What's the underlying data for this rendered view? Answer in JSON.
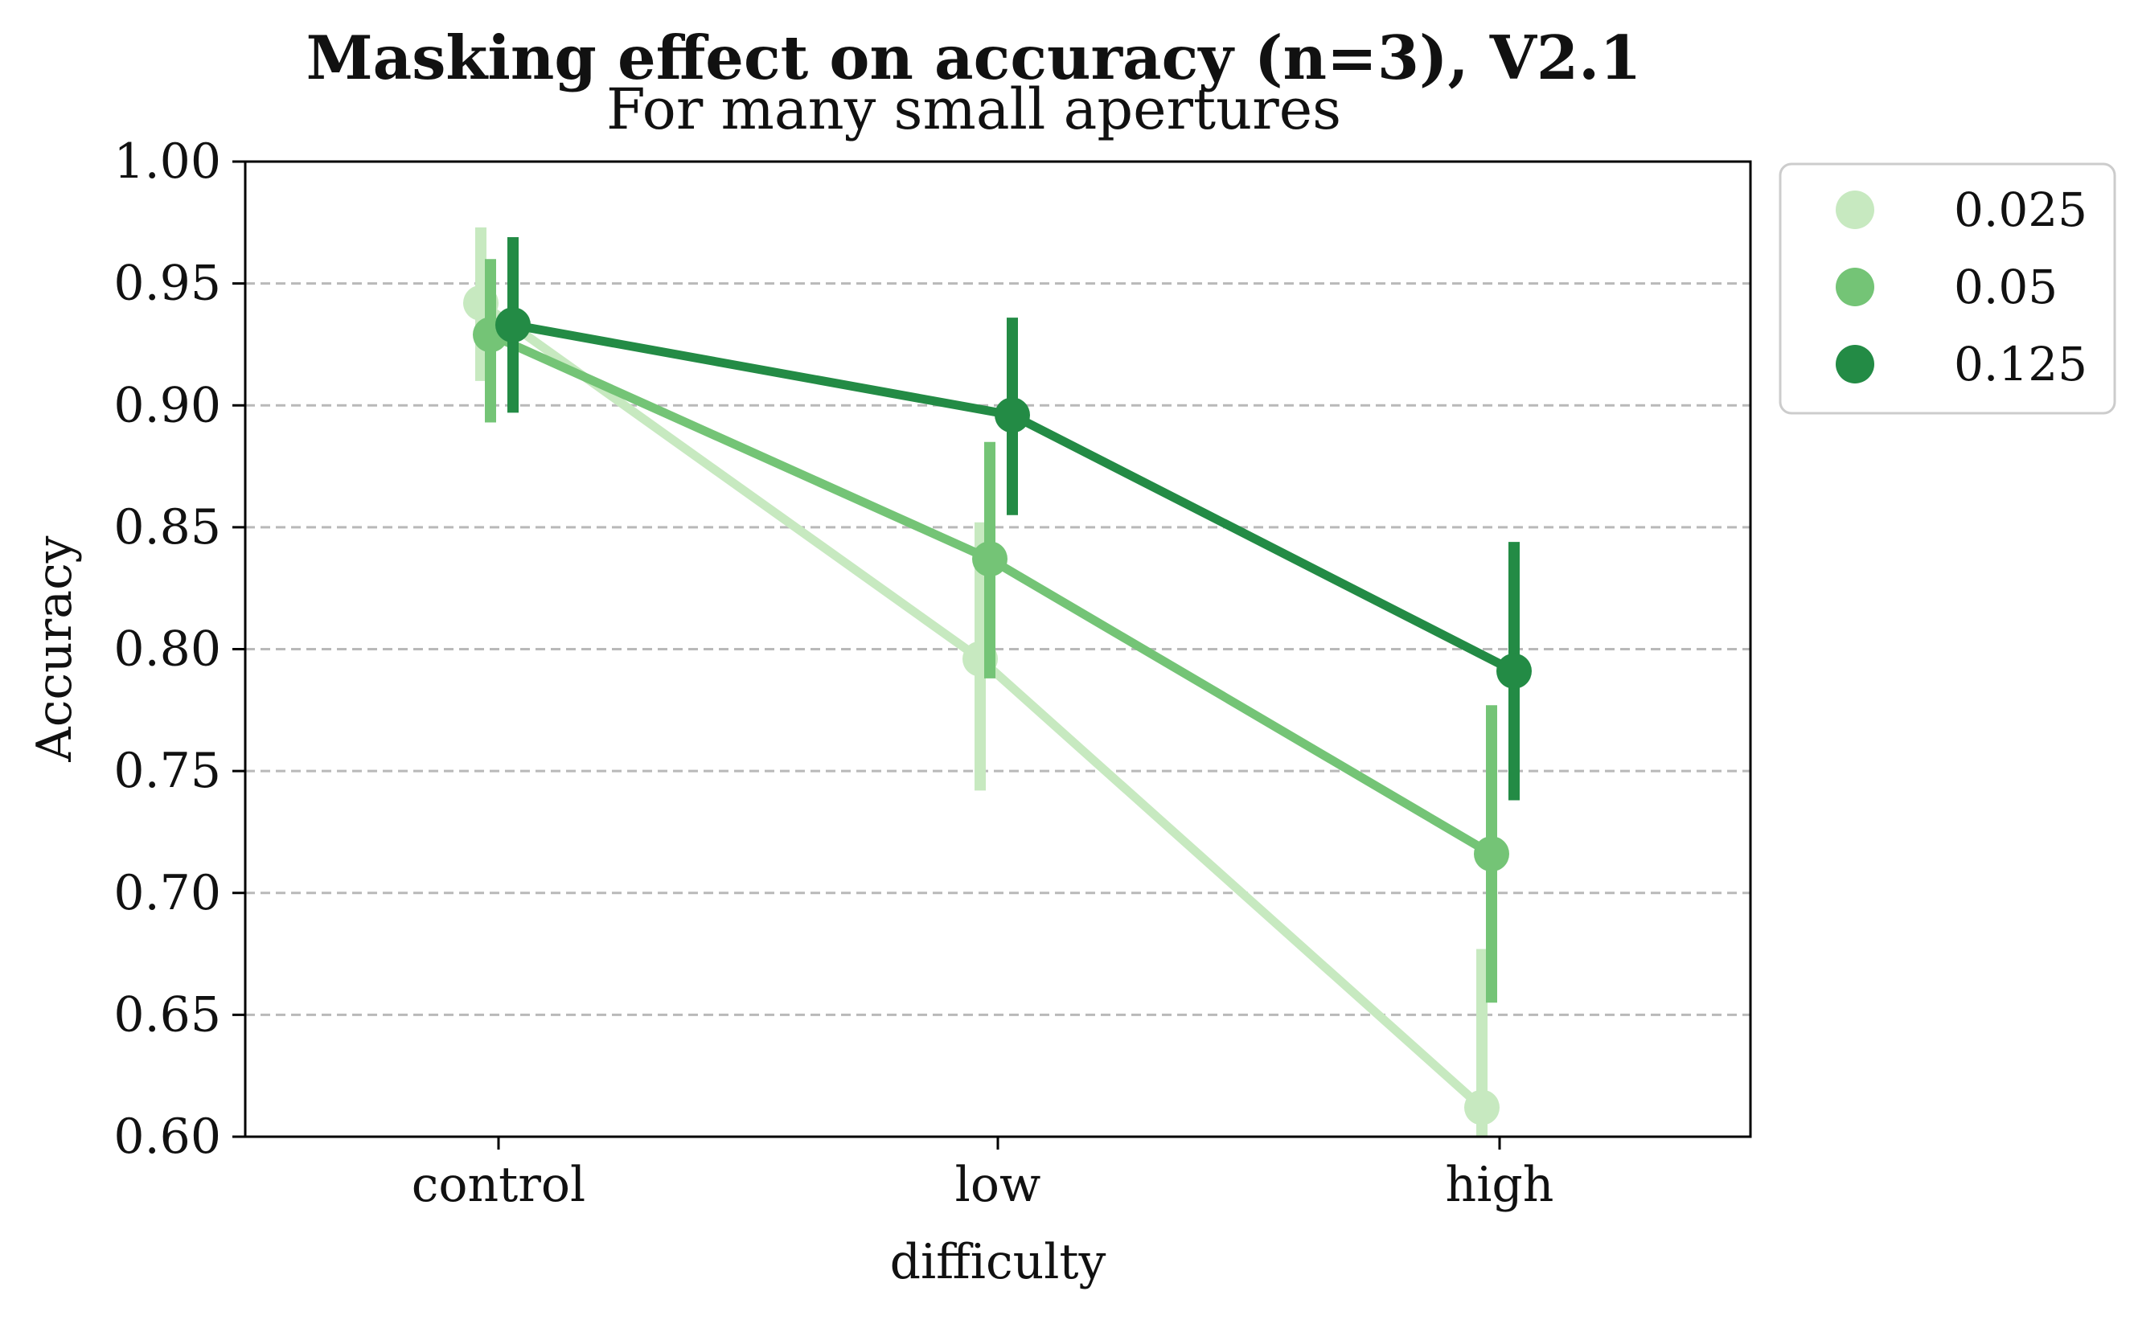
{
  "chart_data": {
    "type": "line",
    "title": "Masking effect on accuracy (n=3), V2.1",
    "subtitle": "For many small apertures",
    "xlabel": "difficulty",
    "ylabel": "Accuracy",
    "categories": [
      "control",
      "low",
      "high"
    ],
    "ylim": [
      0.6,
      1.0
    ],
    "yticks": [
      0.6,
      0.65,
      0.7,
      0.75,
      0.8,
      0.85,
      0.9,
      0.95,
      1.0
    ],
    "ytick_labels": [
      "0.60",
      "0.65",
      "0.70",
      "0.75",
      "0.80",
      "0.85",
      "0.90",
      "0.95",
      "1.00"
    ],
    "grid": "horizontal dashed",
    "legend_position": "outside right, top",
    "series": [
      {
        "name": "0.025",
        "color": "#c7e9c0",
        "values": [
          0.942,
          0.796,
          0.612
        ],
        "ci_low": [
          0.91,
          0.742,
          0.56
        ],
        "ci_high": [
          0.973,
          0.852,
          0.677
        ]
      },
      {
        "name": "0.05",
        "color": "#74c476",
        "values": [
          0.929,
          0.837,
          0.716
        ],
        "ci_low": [
          0.893,
          0.788,
          0.655
        ],
        "ci_high": [
          0.96,
          0.885,
          0.777
        ]
      },
      {
        "name": "0.125",
        "color": "#238b45",
        "values": [
          0.933,
          0.896,
          0.791
        ],
        "ci_low": [
          0.897,
          0.855,
          0.738
        ],
        "ci_high": [
          0.969,
          0.936,
          0.844
        ]
      }
    ]
  }
}
